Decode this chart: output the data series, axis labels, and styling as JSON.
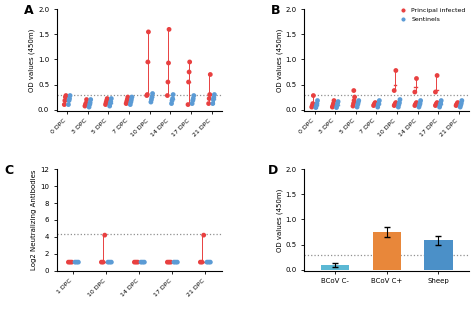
{
  "panel_A": {
    "title": "A",
    "xlabel_ticks": [
      "0 DPC",
      "3 DPC",
      "5 DPC",
      "7 DPC",
      "10 DPC",
      "14 DPC",
      "17 DPC",
      "21 DPC"
    ],
    "ylabel": "OD values (450m)",
    "ylim": [
      -0.02,
      2.0
    ],
    "yticks": [
      0.0,
      0.5,
      1.0,
      1.5,
      2.0
    ],
    "hline": 0.3,
    "red_points": [
      [
        0.1,
        0.18,
        0.25,
        0.28
      ],
      [
        0.07,
        0.1,
        0.13,
        0.2
      ],
      [
        0.1,
        0.14,
        0.18,
        0.22
      ],
      [
        0.12,
        0.16,
        0.2,
        0.25
      ],
      [
        0.28,
        0.3,
        0.95,
        1.55
      ],
      [
        0.28,
        0.55,
        0.93,
        1.6
      ],
      [
        0.1,
        0.55,
        0.75,
        0.95
      ],
      [
        0.12,
        0.22,
        0.3,
        0.7
      ]
    ],
    "red_medians": [
      0.18,
      0.12,
      0.15,
      0.18,
      0.95,
      0.93,
      0.55,
      0.3
    ],
    "blue_points": [
      [
        0.1,
        0.18,
        0.22,
        0.28
      ],
      [
        0.05,
        0.1,
        0.14,
        0.2
      ],
      [
        0.07,
        0.12,
        0.16,
        0.22
      ],
      [
        0.1,
        0.15,
        0.2,
        0.25
      ],
      [
        0.15,
        0.2,
        0.25,
        0.32
      ],
      [
        0.12,
        0.18,
        0.22,
        0.3
      ],
      [
        0.12,
        0.18,
        0.22,
        0.28
      ],
      [
        0.12,
        0.2,
        0.24,
        0.3
      ]
    ],
    "blue_medians": [
      0.2,
      0.12,
      0.14,
      0.18,
      0.25,
      0.22,
      0.2,
      0.22
    ]
  },
  "panel_B": {
    "title": "B",
    "xlabel_ticks": [
      "0 DPC",
      "3 DPC",
      "5 DPC",
      "7 DPC",
      "10 DPC",
      "14 DPC",
      "17 DPC",
      "21 DPC"
    ],
    "ylabel": "OD values (450m)",
    "ylim": [
      -0.02,
      2.0
    ],
    "yticks": [
      0.0,
      0.5,
      1.0,
      1.5,
      2.0
    ],
    "hline": 0.3,
    "red_points": [
      [
        0.05,
        0.08,
        0.12,
        0.28
      ],
      [
        0.05,
        0.08,
        0.12,
        0.18
      ],
      [
        0.07,
        0.12,
        0.18,
        0.25
      ],
      [
        0.08,
        0.1,
        0.12,
        0.14
      ],
      [
        0.08,
        0.1,
        0.12,
        0.14
      ],
      [
        0.08,
        0.1,
        0.12,
        0.14
      ],
      [
        0.08,
        0.1,
        0.12,
        0.14
      ],
      [
        0.08,
        0.1,
        0.12,
        0.14
      ]
    ],
    "red_medians": [
      0.1,
      0.1,
      0.15,
      0.1,
      0.1,
      0.1,
      0.1,
      0.1
    ],
    "blue_points": [
      [
        0.04,
        0.08,
        0.12,
        0.18
      ],
      [
        0.04,
        0.08,
        0.12,
        0.16
      ],
      [
        0.05,
        0.1,
        0.14,
        0.18
      ],
      [
        0.05,
        0.1,
        0.12,
        0.18
      ],
      [
        0.05,
        0.1,
        0.14,
        0.2
      ],
      [
        0.05,
        0.09,
        0.13,
        0.18
      ],
      [
        0.05,
        0.09,
        0.13,
        0.18
      ],
      [
        0.05,
        0.09,
        0.13,
        0.18
      ]
    ],
    "blue_medians": [
      0.1,
      0.1,
      0.12,
      0.12,
      0.14,
      0.12,
      0.12,
      0.12
    ]
  },
  "panel_B_special": {
    "red_10_points": [
      0.38,
      0.78
    ],
    "red_10_median": 0.5,
    "red_14_points": [
      0.35,
      0.62
    ],
    "red_14_median": 0.45,
    "red_17_points": [
      0.35,
      0.68
    ],
    "red_17_median": 0.4,
    "red_5_point": 0.38
  },
  "panel_C": {
    "title": "C",
    "xlabel_ticks": [
      "1 DPC",
      "10 DPC",
      "14 DPC",
      "17 DPC",
      "21 DPC"
    ],
    "ylabel": "Log2 Neutralizing Antibodies",
    "ylim": [
      0,
      12
    ],
    "yticks": [
      0,
      2,
      4,
      6,
      8,
      10,
      12
    ],
    "hline": 4.3,
    "red_points": [
      [
        1.0,
        1.0,
        1.0
      ],
      [
        1.0,
        1.0,
        4.2
      ],
      [
        1.0,
        1.0,
        1.0
      ],
      [
        1.0,
        1.0,
        1.0
      ],
      [
        1.0,
        1.0,
        4.2
      ]
    ],
    "red_medians": [
      1.0,
      1.0,
      1.0,
      1.0,
      1.0
    ],
    "blue_points": [
      [
        1.0,
        1.0,
        1.0
      ],
      [
        1.0,
        1.0,
        1.0
      ],
      [
        1.0,
        1.0,
        1.0
      ],
      [
        1.0,
        1.0,
        1.0
      ],
      [
        1.0,
        1.0,
        1.0
      ]
    ],
    "blue_medians": [
      1.0,
      1.0,
      1.0,
      1.0,
      1.0
    ]
  },
  "panel_D": {
    "title": "D",
    "ylabel": "OD values (450m)",
    "ylim": [
      -0.02,
      2.0
    ],
    "yticks": [
      0.0,
      0.5,
      1.0,
      1.5,
      2.0
    ],
    "hline": 0.3,
    "categories": [
      "BCoV C-",
      "BCoV C+",
      "Sheep"
    ],
    "bar_colors": [
      "#5BB8D4",
      "#E8873A",
      "#4B90C8"
    ],
    "bar_values": [
      0.1,
      0.75,
      0.58
    ],
    "bar_errors": [
      0.04,
      0.1,
      0.08
    ]
  },
  "red_color": "#E84040",
  "blue_color": "#5B9BD5",
  "dot_size": 12,
  "legend_items": [
    "Principal infected",
    "Sentinels"
  ]
}
